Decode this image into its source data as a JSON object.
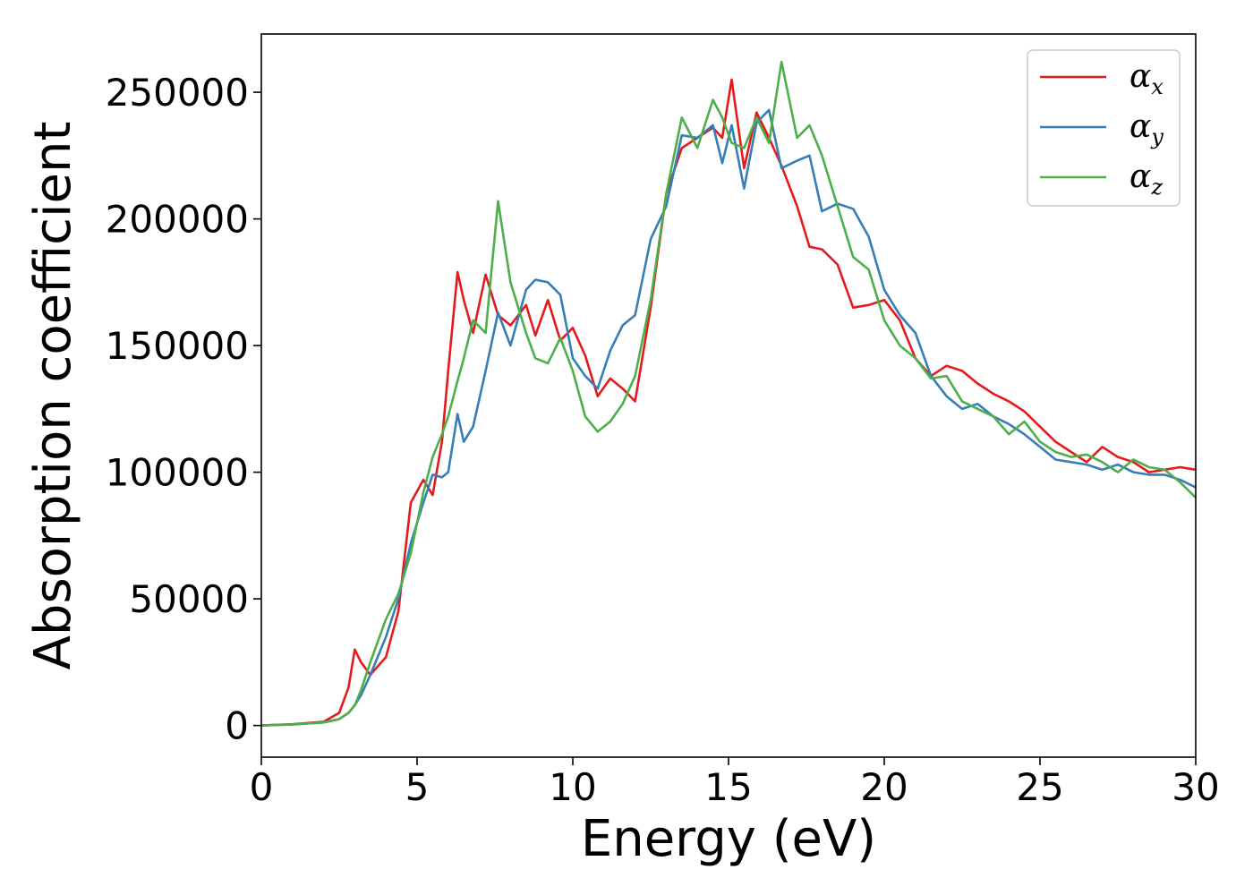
{
  "chart_data": {
    "type": "line",
    "title": "",
    "xlabel": "Energy (eV)",
    "ylabel": "Absorption coefficient",
    "xlim": [
      0,
      30
    ],
    "ylim": [
      -12500,
      273000
    ],
    "xticks": [
      0,
      5,
      10,
      15,
      20,
      25,
      30
    ],
    "xtick_labels": [
      "0",
      "5",
      "10",
      "15",
      "20",
      "25",
      "30"
    ],
    "yticks": [
      0,
      50000,
      100000,
      150000,
      200000,
      250000
    ],
    "ytick_labels": [
      "0",
      "50000",
      "100000",
      "150000",
      "200000",
      "250000"
    ],
    "grid": false,
    "legend_position": "top-right",
    "series": [
      {
        "name": "α",
        "subscript": "x",
        "color": "#e41a1c",
        "x": [
          0,
          1,
          2,
          2.5,
          2.8,
          3.0,
          3.2,
          3.5,
          4.0,
          4.4,
          4.8,
          5.2,
          5.5,
          5.8,
          6.0,
          6.3,
          6.5,
          6.8,
          7.2,
          7.6,
          8.0,
          8.5,
          8.8,
          9.2,
          9.6,
          10.0,
          10.4,
          10.8,
          11.2,
          11.6,
          12.0,
          12.5,
          13.0,
          13.5,
          14.0,
          14.5,
          14.8,
          15.1,
          15.5,
          15.9,
          16.3,
          16.7,
          17.2,
          17.6,
          18.0,
          18.5,
          19.0,
          19.5,
          20.0,
          20.5,
          21.0,
          21.5,
          22.0,
          22.5,
          23.0,
          23.5,
          24.0,
          24.5,
          25.0,
          25.5,
          26.0,
          26.5,
          27.0,
          27.5,
          28.0,
          28.5,
          29.0,
          29.5,
          30.0
        ],
        "y": [
          0,
          500,
          1500,
          5000,
          15000,
          30000,
          25000,
          20000,
          27000,
          45000,
          88000,
          97000,
          91000,
          112000,
          140000,
          179000,
          168000,
          155000,
          178000,
          162000,
          158000,
          166000,
          154000,
          168000,
          152000,
          157000,
          146000,
          130000,
          137000,
          133000,
          128000,
          165000,
          210000,
          228000,
          232000,
          236000,
          232000,
          255000,
          220000,
          242000,
          232000,
          221000,
          205000,
          189000,
          188000,
          182000,
          165000,
          166000,
          168000,
          160000,
          145000,
          138000,
          142000,
          140000,
          135000,
          131000,
          128000,
          124000,
          118000,
          112000,
          108000,
          104000,
          110000,
          106000,
          104000,
          100000,
          101000,
          102000,
          101000
        ]
      },
      {
        "name": "α",
        "subscript": "y",
        "color": "#377eb8",
        "x": [
          0,
          1,
          2,
          2.5,
          2.8,
          3.0,
          3.2,
          3.5,
          4.0,
          4.4,
          4.8,
          5.2,
          5.5,
          5.8,
          6.0,
          6.3,
          6.5,
          6.8,
          7.2,
          7.6,
          8.0,
          8.5,
          8.8,
          9.2,
          9.6,
          10.0,
          10.4,
          10.8,
          11.2,
          11.6,
          12.0,
          12.5,
          13.0,
          13.5,
          14.0,
          14.5,
          14.8,
          15.1,
          15.5,
          15.9,
          16.3,
          16.7,
          17.2,
          17.6,
          18.0,
          18.5,
          19.0,
          19.5,
          20.0,
          20.5,
          21.0,
          21.5,
          22.0,
          22.5,
          23.0,
          23.5,
          24.0,
          24.5,
          25.0,
          25.5,
          26.0,
          26.5,
          27.0,
          27.5,
          28.0,
          28.5,
          29.0,
          29.5,
          30.0
        ],
        "y": [
          0,
          400,
          1200,
          2500,
          5000,
          8000,
          12000,
          20000,
          35000,
          50000,
          72000,
          88000,
          99000,
          98000,
          100000,
          123000,
          112000,
          118000,
          140000,
          163000,
          150000,
          172000,
          176000,
          175000,
          170000,
          145000,
          138000,
          133000,
          148000,
          158000,
          162000,
          192000,
          205000,
          233000,
          232000,
          237000,
          222000,
          237000,
          212000,
          238000,
          243000,
          220000,
          223000,
          225000,
          203000,
          206000,
          204000,
          193000,
          172000,
          162000,
          155000,
          138000,
          130000,
          125000,
          127000,
          122000,
          119000,
          115000,
          110000,
          105000,
          104000,
          103000,
          101000,
          103000,
          100000,
          99000,
          99000,
          97000,
          94000
        ]
      },
      {
        "name": "α",
        "subscript": "z",
        "color": "#4daf4a",
        "x": [
          0,
          1,
          2,
          2.5,
          2.8,
          3.0,
          3.2,
          3.5,
          4.0,
          4.4,
          4.8,
          5.2,
          5.5,
          5.8,
          6.0,
          6.3,
          6.5,
          6.8,
          7.2,
          7.6,
          8.0,
          8.5,
          8.8,
          9.2,
          9.6,
          10.0,
          10.4,
          10.8,
          11.2,
          11.6,
          12.0,
          12.5,
          13.0,
          13.5,
          14.0,
          14.5,
          14.8,
          15.1,
          15.5,
          15.9,
          16.3,
          16.7,
          17.2,
          17.6,
          18.0,
          18.5,
          19.0,
          19.5,
          20.0,
          20.5,
          21.0,
          21.5,
          22.0,
          22.5,
          23.0,
          23.5,
          24.0,
          24.5,
          25.0,
          25.5,
          26.0,
          26.5,
          27.0,
          27.5,
          28.0,
          28.5,
          29.0,
          29.5,
          30.0
        ],
        "y": [
          0,
          400,
          1200,
          2500,
          5000,
          8000,
          14000,
          25000,
          42000,
          52000,
          68000,
          92000,
          106000,
          115000,
          122000,
          136000,
          145000,
          160000,
          155000,
          207000,
          175000,
          155000,
          145000,
          143000,
          153000,
          140000,
          122000,
          116000,
          120000,
          127000,
          138000,
          168000,
          210000,
          240000,
          228000,
          247000,
          240000,
          230000,
          228000,
          240000,
          230000,
          262000,
          232000,
          237000,
          225000,
          205000,
          185000,
          180000,
          160000,
          150000,
          145000,
          137000,
          138000,
          128000,
          125000,
          122000,
          115000,
          120000,
          112000,
          108000,
          106000,
          107000,
          104000,
          100000,
          105000,
          102000,
          101000,
          96000,
          90000
        ]
      }
    ]
  }
}
